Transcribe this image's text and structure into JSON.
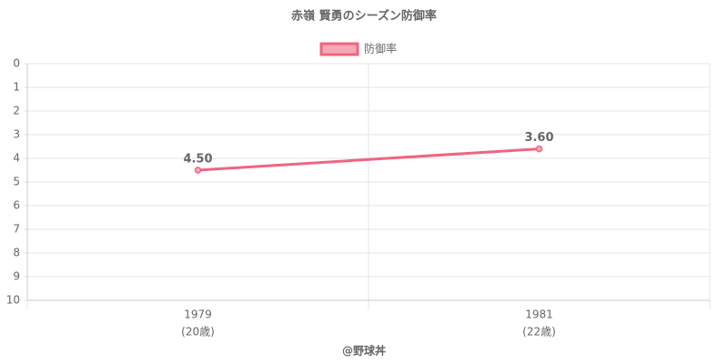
{
  "chart_data": {
    "type": "line",
    "title": "赤嶺 賢勇のシーズン防御率",
    "categories": [
      "1979",
      "1981"
    ],
    "category_sublabels": [
      "(20歳)",
      "(22歳)"
    ],
    "series": [
      {
        "name": "防御率",
        "color": "#f0657f",
        "values": [
          4.5,
          3.6
        ],
        "value_labels": [
          "4.50",
          "3.60"
        ]
      }
    ],
    "ylim": [
      0,
      10
    ],
    "yticks": [
      0,
      1,
      2,
      3,
      4,
      5,
      6,
      7,
      8,
      9,
      10
    ],
    "y_reversed": true,
    "grid": true,
    "legend": "top",
    "footer": "@野球丼"
  }
}
